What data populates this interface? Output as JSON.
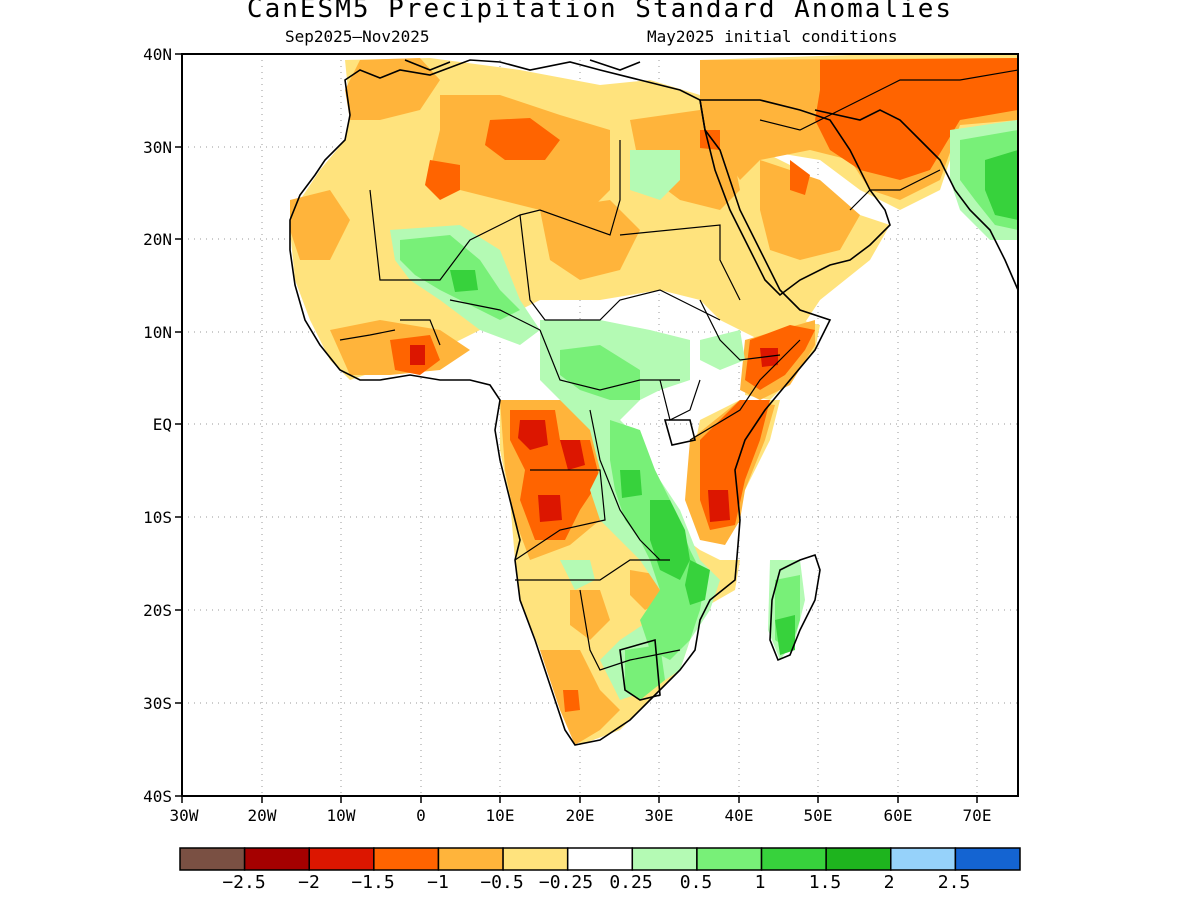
{
  "title": "CanESM5 Precipitation Standard Anomalies",
  "subtitle_left": "Sep2025–Nov2025",
  "subtitle_right": "May2025 initial conditions",
  "lat_labels": [
    "40N",
    "30N",
    "20N",
    "10N",
    "EQ",
    "10S",
    "20S",
    "30S",
    "40S"
  ],
  "lon_labels": [
    "30W",
    "20W",
    "10W",
    "0",
    "10E",
    "20E",
    "30E",
    "40E",
    "50E",
    "60E",
    "70E"
  ],
  "colorbar": {
    "colors": [
      "#7a5043",
      "#a50000",
      "#dc1600",
      "#ff6400",
      "#ffb43b",
      "#ffe37d",
      "#ffffff",
      "#b4fab4",
      "#78f078",
      "#37d23c",
      "#1eb41e",
      "#96d2fa",
      "#1464d2"
    ],
    "labels": [
      "−2.5",
      "−2",
      "−1.5",
      "−1",
      "−0.5",
      "−0.25",
      "0.25",
      "0.5",
      "1",
      "1.5",
      "2",
      "2.5"
    ]
  }
}
